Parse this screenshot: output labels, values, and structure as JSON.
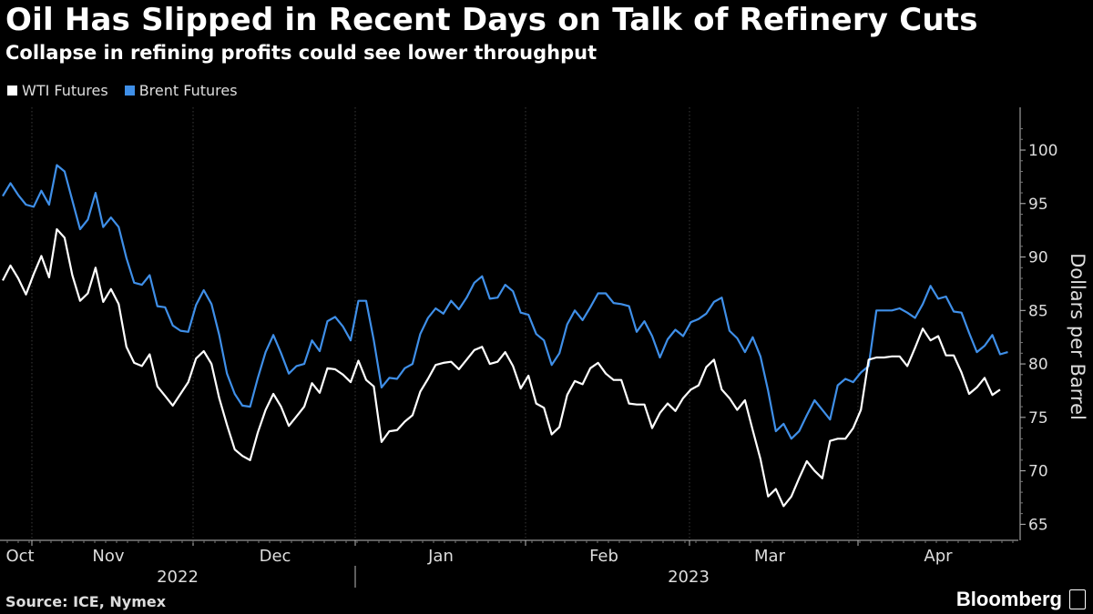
{
  "title": "Oil Has Slipped in Recent Days on Talk of Refinery Cuts",
  "subtitle": "Collapse in refining profits could see lower throughput",
  "source": "Source: ICE, Nymex",
  "brand": "Bloomberg",
  "chart_data": {
    "type": "line",
    "ylabel": "Dollars per Barrel",
    "ylim": [
      63.5,
      104
    ],
    "yticks": [
      65,
      70,
      75,
      80,
      85,
      90,
      95,
      100
    ],
    "x_ticks": [
      "Oct",
      "Nov",
      "Dec",
      "Jan",
      "Feb",
      "Mar",
      "Apr"
    ],
    "years": [
      "2022",
      "2023"
    ],
    "grid": "vertical",
    "legend_position": "top-left",
    "series": [
      {
        "name": "WTI Futures",
        "color": "#ffffff",
        "values": [
          87.8,
          89.2,
          88,
          86.5,
          88.4,
          90.1,
          88.1,
          92.6,
          91.8,
          88.3,
          85.9,
          86.6,
          89,
          85.8,
          87,
          85.6,
          81.6,
          80.1,
          79.8,
          80.9,
          77.9,
          77,
          76.1,
          77.2,
          78.3,
          80.5,
          81.2,
          80,
          76.8,
          74.3,
          72,
          71.4,
          71,
          73.6,
          75.7,
          77.2,
          76,
          74.2,
          75.1,
          76,
          78.2,
          77.3,
          79.6,
          79.5,
          79,
          78.3,
          80.3,
          78.5,
          77.9,
          72.7,
          73.7,
          73.8,
          74.6,
          75.2,
          77.4,
          78.6,
          79.9,
          80.1,
          80.2,
          79.5,
          80.4,
          81.3,
          81.6,
          80,
          80.2,
          81.1,
          79.8,
          77.7,
          78.9,
          76.3,
          75.9,
          73.4,
          74.1,
          77.1,
          78.4,
          78.1,
          79.6,
          80.1,
          79.1,
          78.5,
          78.5,
          76.3,
          76.2,
          76.2,
          74,
          75.4,
          76.3,
          75.6,
          76.8,
          77.6,
          78,
          79.7,
          80.4,
          77.6,
          76.8,
          75.7,
          76.6,
          73.8,
          71.1,
          67.6,
          68.3,
          66.7,
          67.6,
          69.3,
          70.9,
          70,
          69.3,
          72.8,
          73,
          73,
          74,
          75.7,
          80.4,
          80.6,
          80.6,
          80.7,
          80.7,
          79.8,
          81.5,
          83.3,
          82.2,
          82.6,
          80.8,
          80.8,
          79.2,
          77.2,
          77.8,
          78.7,
          77.1,
          77.6
        ]
      },
      {
        "name": "Brent Futures",
        "color": "#3f8fe8",
        "values": [
          95.7,
          96.9,
          95.8,
          94.9,
          94.7,
          96.2,
          94.9,
          98.6,
          98,
          95.3,
          92.6,
          93.5,
          96,
          92.8,
          93.7,
          92.8,
          89.9,
          87.6,
          87.4,
          88.3,
          85.4,
          85.3,
          83.6,
          83.1,
          83,
          85.5,
          86.9,
          85.6,
          82.7,
          79.1,
          77.2,
          76.1,
          76,
          78.7,
          81.1,
          82.7,
          81,
          79.1,
          79.8,
          80,
          82.2,
          81.2,
          84,
          84.4,
          83.5,
          82.2,
          85.9,
          85.9,
          82.2,
          77.8,
          78.7,
          78.6,
          79.6,
          80,
          82.8,
          84.3,
          85.2,
          84.7,
          85.9,
          85.1,
          86.2,
          87.6,
          88.2,
          86.1,
          86.2,
          87.4,
          86.8,
          84.8,
          84.6,
          82.8,
          82.2,
          79.9,
          81,
          83.7,
          85,
          84.1,
          85.3,
          86.6,
          86.6,
          85.7,
          85.6,
          85.4,
          83,
          84,
          82.6,
          80.6,
          82.3,
          83.2,
          82.6,
          83.9,
          84.2,
          84.7,
          85.8,
          86.2,
          83.1,
          82.4,
          81.1,
          82.5,
          80.7,
          77.5,
          73.7,
          74.4,
          73,
          73.7,
          75.2,
          76.6,
          75.7,
          74.8,
          78,
          78.6,
          78.3,
          79.2,
          79.8,
          85,
          85,
          85,
          85.2,
          84.8,
          84.3,
          85.6,
          87.3,
          86.1,
          86.3,
          84.9,
          84.8,
          82.9,
          81.1,
          81.7,
          82.7,
          80.9,
          81.1
        ]
      }
    ]
  }
}
